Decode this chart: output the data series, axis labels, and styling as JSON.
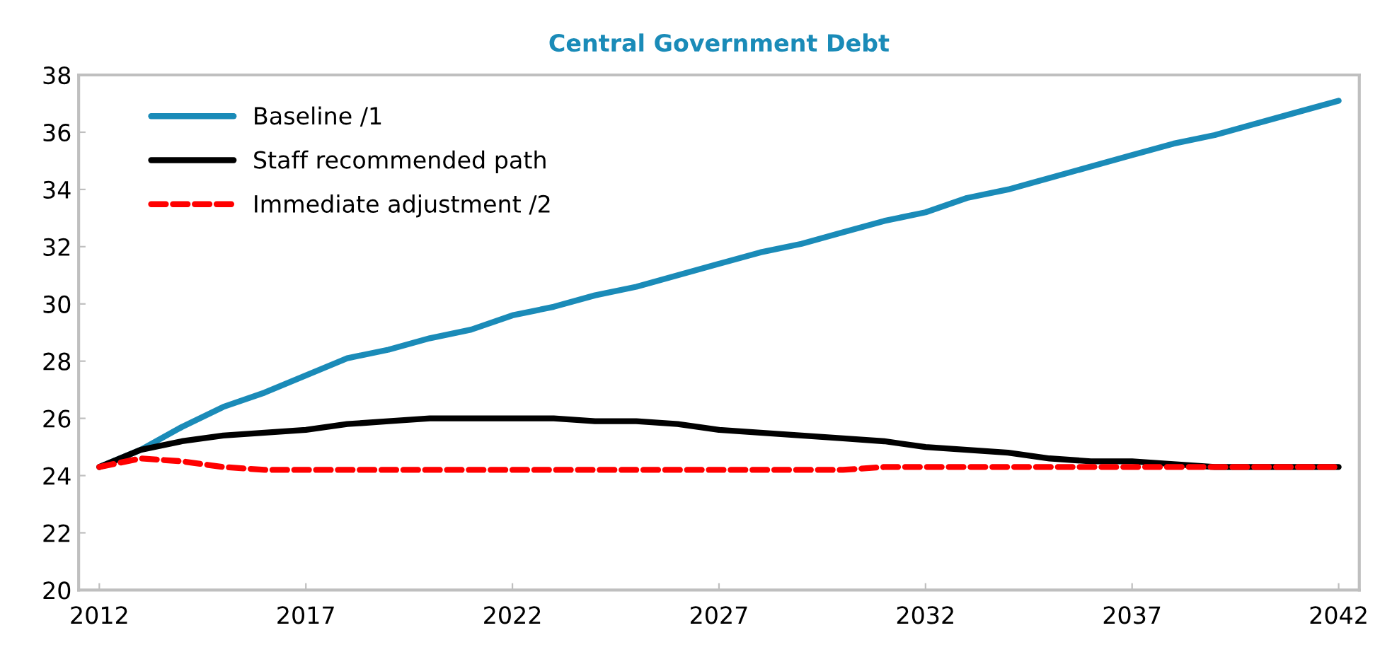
{
  "chart_data": {
    "type": "line",
    "title": "Central Government Debt",
    "x": [
      2012,
      2013,
      2014,
      2015,
      2016,
      2017,
      2018,
      2019,
      2020,
      2021,
      2022,
      2023,
      2024,
      2025,
      2026,
      2027,
      2028,
      2029,
      2030,
      2031,
      2032,
      2033,
      2034,
      2035,
      2036,
      2037,
      2038,
      2039,
      2040,
      2041,
      2042
    ],
    "series": [
      {
        "name": "Baseline /1",
        "color": "#1a8bb8",
        "line_style": "solid",
        "values": [
          24.3,
          24.9,
          25.7,
          26.4,
          26.9,
          27.5,
          28.1,
          28.4,
          28.8,
          29.1,
          29.6,
          29.9,
          30.3,
          30.6,
          31.0,
          31.4,
          31.8,
          32.1,
          32.5,
          32.9,
          33.2,
          33.7,
          34.0,
          34.4,
          34.8,
          35.2,
          35.6,
          35.9,
          36.3,
          36.7,
          37.1
        ]
      },
      {
        "name": "Staff recommended path",
        "color": "#000000",
        "line_style": "solid",
        "values": [
          24.3,
          24.9,
          25.2,
          25.4,
          25.5,
          25.6,
          25.8,
          25.9,
          26.0,
          26.0,
          26.0,
          26.0,
          25.9,
          25.9,
          25.8,
          25.6,
          25.5,
          25.4,
          25.3,
          25.2,
          25.0,
          24.9,
          24.8,
          24.6,
          24.5,
          24.5,
          24.4,
          24.3,
          24.3,
          24.3,
          24.3
        ]
      },
      {
        "name": "Immediate adjustment /2",
        "color": "#ff0000",
        "line_style": "dashed",
        "values": [
          24.3,
          24.6,
          24.5,
          24.3,
          24.2,
          24.2,
          24.2,
          24.2,
          24.2,
          24.2,
          24.2,
          24.2,
          24.2,
          24.2,
          24.2,
          24.2,
          24.2,
          24.2,
          24.2,
          24.3,
          24.3,
          24.3,
          24.3,
          24.3,
          24.3,
          24.3,
          24.3,
          24.3,
          24.3,
          24.3,
          24.3
        ]
      }
    ],
    "xlim": [
      2011.5,
      2042.5
    ],
    "xticks": [
      2012,
      2017,
      2022,
      2027,
      2032,
      2037,
      2042
    ],
    "ylim": [
      20,
      38
    ],
    "yticks": [
      20,
      22,
      24,
      26,
      28,
      30,
      32,
      34,
      36,
      38
    ],
    "grid": false,
    "legend": "top left"
  }
}
